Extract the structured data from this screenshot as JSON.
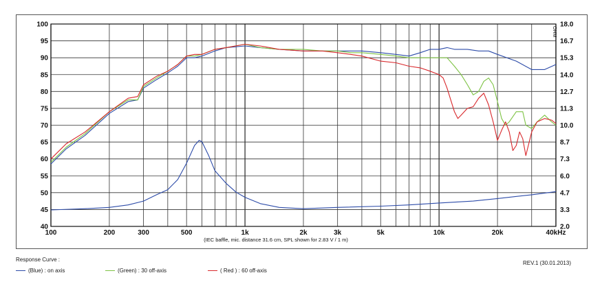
{
  "chart_data": {
    "type": "line",
    "xscale": "log",
    "xlim": [
      100,
      40000
    ],
    "ylim": [
      40,
      100
    ],
    "y2lim": [
      2.0,
      18.0
    ],
    "grid": true,
    "x_tick_labels": [
      {
        "v": 100,
        "t": "100"
      },
      {
        "v": 200,
        "t": "200"
      },
      {
        "v": 300,
        "t": "300"
      },
      {
        "v": 500,
        "t": "500"
      },
      {
        "v": 1000,
        "t": "1k"
      },
      {
        "v": 2000,
        "t": "2k"
      },
      {
        "v": 3000,
        "t": "3k"
      },
      {
        "v": 5000,
        "t": "5k"
      },
      {
        "v": 10000,
        "t": "10k"
      },
      {
        "v": 20000,
        "t": "20k"
      },
      {
        "v": 40000,
        "t": "40kHz"
      }
    ],
    "y_ticks": [
      40,
      45,
      50,
      55,
      60,
      65,
      70,
      75,
      80,
      85,
      90,
      95,
      100
    ],
    "y2_tick_labels": [
      "2.0",
      "3.3",
      "4.7",
      "6.0",
      "7.3",
      "8.7",
      "10.0",
      "11.3",
      "12.7",
      "14.0",
      "15.3",
      "16.7",
      "18.0"
    ],
    "y2_unit": "OHM",
    "x_caption": "(IEC baffle, mic. distance 31.6 cm, SPL shown for 2.83 V / 1 m)",
    "series": [
      {
        "name": "(Blue)  : on axis",
        "color": "#2b4aa8",
        "axis": "y",
        "x": [
          100,
          120,
          150,
          200,
          250,
          280,
          300,
          350,
          400,
          450,
          500,
          550,
          600,
          700,
          800,
          1000,
          1200,
          1500,
          2000,
          2500,
          3000,
          3500,
          4000,
          5000,
          6000,
          7000,
          8000,
          9000,
          10000,
          11000,
          12000,
          14000,
          16000,
          18000,
          20000,
          25000,
          30000,
          35000,
          40000
        ],
        "y": [
          58.5,
          63,
          67,
          73.5,
          77,
          77.5,
          81,
          83.5,
          85.5,
          87.5,
          90,
          90,
          90.5,
          92,
          93,
          93.5,
          93,
          92.5,
          92,
          92,
          92,
          92,
          92,
          91.5,
          91,
          90.5,
          91.5,
          92.5,
          92.5,
          93,
          92.5,
          92.5,
          92,
          92,
          91,
          89,
          86.5,
          86.5,
          88
        ]
      },
      {
        "name": "(Green) : 30 off-axis",
        "color": "#7cc242",
        "axis": "y",
        "x": [
          100,
          120,
          150,
          200,
          250,
          280,
          300,
          350,
          400,
          450,
          500,
          550,
          600,
          700,
          800,
          1000,
          1200,
          1500,
          2000,
          2500,
          3000,
          3500,
          4000,
          5000,
          6000,
          7000,
          8000,
          9000,
          10000,
          11000,
          12000,
          13000,
          14000,
          15000,
          16000,
          17000,
          18000,
          19000,
          20000,
          21000,
          22000,
          23000,
          25000,
          27000,
          28000,
          30000,
          32000,
          35000,
          38000,
          40000
        ],
        "y": [
          59,
          63.5,
          67.5,
          74,
          77.5,
          77.5,
          81.5,
          84,
          86,
          88,
          90.5,
          90.5,
          91,
          92.5,
          93,
          94,
          93,
          92.5,
          92.5,
          92,
          92,
          91.5,
          91.5,
          91,
          90.5,
          90,
          90,
          90,
          90,
          90,
          87.5,
          85,
          82,
          79,
          80,
          83,
          84,
          82,
          77,
          72,
          70,
          71,
          74,
          74,
          70,
          69,
          71,
          73,
          71,
          70
        ]
      },
      {
        "name": "( Red ) : 60 off-axis",
        "color": "#d8262a",
        "axis": "y",
        "x": [
          100,
          120,
          150,
          200,
          250,
          280,
          300,
          350,
          400,
          450,
          500,
          550,
          600,
          700,
          800,
          1000,
          1200,
          1500,
          2000,
          2500,
          3000,
          3500,
          4000,
          5000,
          6000,
          7000,
          8000,
          9000,
          10000,
          10500,
          11000,
          12000,
          12500,
          13000,
          14000,
          15000,
          16000,
          17000,
          18000,
          19000,
          20000,
          21000,
          22000,
          23000,
          24000,
          25000,
          26000,
          27000,
          28000,
          30000,
          32000,
          35000,
          38000,
          40000
        ],
        "y": [
          60,
          64.5,
          68,
          74,
          78,
          78.5,
          82,
          84.5,
          86,
          88,
          90.5,
          91,
          91,
          92.5,
          93,
          94,
          93.5,
          92.5,
          92,
          92,
          91.5,
          91,
          90.5,
          89,
          88.5,
          87.5,
          87,
          86,
          85,
          84,
          81,
          74,
          72,
          73,
          75,
          75.5,
          78,
          79.5,
          76,
          71,
          65.5,
          68.5,
          71,
          68,
          62.5,
          64,
          68,
          66,
          61,
          68,
          71,
          72,
          71.5,
          70.5
        ]
      },
      {
        "name": "impedance",
        "color": "#2b4aa8",
        "axis": "y2",
        "x": [
          100,
          150,
          200,
          250,
          300,
          350,
          400,
          450,
          500,
          550,
          580,
          600,
          650,
          700,
          800,
          900,
          1000,
          1200,
          1500,
          2000,
          3000,
          5000,
          7000,
          10000,
          15000,
          20000,
          30000,
          40000
        ],
        "y": [
          3.3,
          3.4,
          3.5,
          3.7,
          4.0,
          4.5,
          4.9,
          5.7,
          7.0,
          8.4,
          8.8,
          8.7,
          7.6,
          6.4,
          5.4,
          4.7,
          4.3,
          3.8,
          3.5,
          3.4,
          3.5,
          3.6,
          3.7,
          3.85,
          4.0,
          4.2,
          4.5,
          4.75
        ]
      }
    ]
  },
  "legend": {
    "title": "Response Curve :",
    "items": [
      {
        "label": "(Blue)  : on axis",
        "color": "#2b4aa8"
      },
      {
        "label": "(Green) : 30 off-axis",
        "color": "#7cc242"
      },
      {
        "label": "( Red ) : 60 off-axis",
        "color": "#d8262a"
      }
    ]
  },
  "revision": "REV.1 (30.01.2013)"
}
